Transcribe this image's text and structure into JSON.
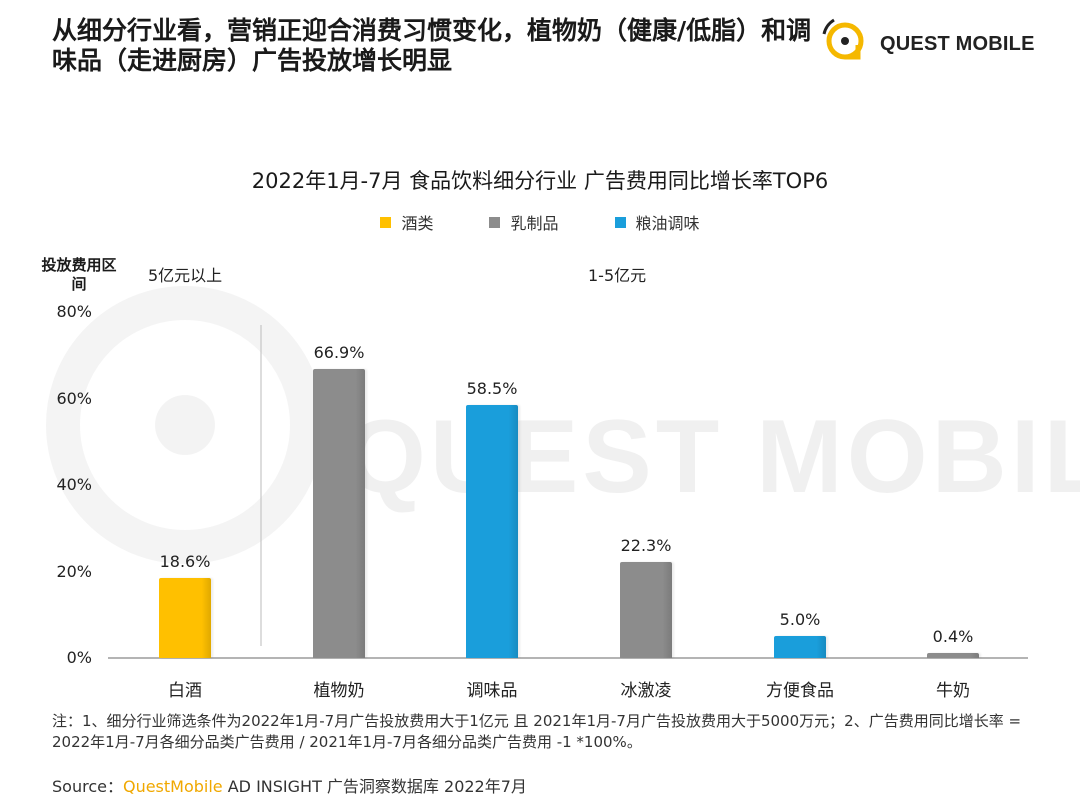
{
  "headline": "从细分行业看，营销正迎合消费习惯变化，植物奶（健康/低脂）和调味品（走进厨房）广告投放增长明显",
  "logo": {
    "text": "QUEST MOBILE"
  },
  "watermark_text": "QUEST MOBILE",
  "colors": {
    "liquor": "#FFC000",
    "dairy": "#8C8C8C",
    "grain_oil": "#1A9EDB"
  },
  "chart_data": {
    "type": "bar",
    "title": "2022年1月-7月 食品饮料细分行业 广告费用同比增长率TOP6",
    "categories": [
      "白酒",
      "植物奶",
      "调味品",
      "冰激凌",
      "方便食品",
      "牛奶"
    ],
    "values": [
      18.6,
      66.9,
      58.5,
      22.3,
      5.0,
      0.4
    ],
    "value_labels": [
      "18.6%",
      "66.9%",
      "58.5%",
      "22.3%",
      "5.0%",
      "0.4%"
    ],
    "groups": [
      "酒类",
      "乳制品",
      "粮油调味",
      "乳制品",
      "粮油调味",
      "乳制品"
    ],
    "legend": [
      "酒类",
      "乳制品",
      "粮油调味"
    ],
    "ylim": [
      0,
      80
    ],
    "yticks": [
      "0%",
      "20%",
      "40%",
      "60%",
      "80%"
    ],
    "range_header": "投放费用区间",
    "range_labels": [
      "5亿元以上",
      "1-5亿元"
    ],
    "xlabel": "",
    "ylabel": ""
  },
  "footer": {
    "note": "注：1、细分行业筛选条件为2022年1月-7月广告投放费用大于1亿元 且 2021年1月-7月广告投放费用大于5000万元；2、广告费用同比增长率 = 2022年1月-7月各细分品类广告费用 / 2021年1月-7月各细分品类广告费用 -1 *100%。",
    "source_prefix": "Source：",
    "source_brand": "QuestMobile",
    "source_rest": " AD INSIGHT 广告洞察数据库 2022年7月"
  }
}
